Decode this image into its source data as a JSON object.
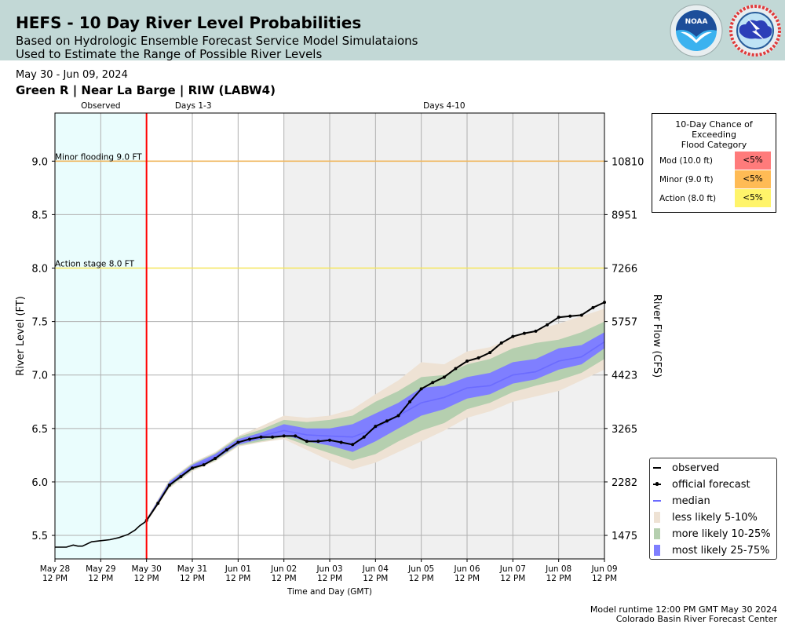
{
  "header": {
    "title": "HEFS - 10 Day River Level Probabilities",
    "subtitle1": "Based on Hydrologic Ensemble Forecast Service Model Simulataions",
    "subtitle2": "Used to Estimate the Range of Possible River Levels",
    "logos": [
      "noaa-logo",
      "nws-logo"
    ],
    "noaa_text": "NOAA"
  },
  "date_range": "May 30 - Jun 09, 2024",
  "location": "Green R | Near La Barge | RIW (LABW4)",
  "flood_box": {
    "title_lines": [
      "10-Day Chance of",
      "Exceeding",
      "Flood Category"
    ],
    "rows": [
      {
        "label": "Mod (10.0 ft)",
        "value": "<5%",
        "color": "#ff7b7b"
      },
      {
        "label": "Minor (9.0 ft)",
        "value": "<5%",
        "color": "#ffbb55"
      },
      {
        "label": "Action (8.0 ft)",
        "value": "<5%",
        "color": "#fff46a"
      }
    ]
  },
  "legend": [
    {
      "label": "observed",
      "type": "line",
      "color": "#000000"
    },
    {
      "label": "official forecast",
      "type": "marker-line",
      "color": "#000000"
    },
    {
      "label": "median",
      "type": "line",
      "color": "#6b6bff"
    },
    {
      "label": "less likely 5-10%",
      "type": "patch",
      "color": "#eee2d4"
    },
    {
      "label": "more likely 10-25%",
      "type": "patch",
      "color": "#b5cfaf"
    },
    {
      "label": "most likely 25-75%",
      "type": "patch",
      "color": "#7f7fff"
    }
  ],
  "footer": {
    "line1": "Model runtime 12:00 PM GMT May 30 2024",
    "line2": "Colorado Basin River Forecast Center"
  },
  "chart_data": {
    "type": "area",
    "xlabel": "Time and Day (GMT)",
    "ylabel": "River Level (FT)",
    "y2label": "River Flow (CFS)",
    "ylim": [
      5.28,
      9.45
    ],
    "xlim_days": [
      0,
      12
    ],
    "grid": true,
    "legend_position": "bottom-right",
    "x_ticks": [
      {
        "day": 0,
        "line1": "May 28",
        "line2": "12 PM"
      },
      {
        "day": 1,
        "line1": "May 29",
        "line2": "12 PM"
      },
      {
        "day": 2,
        "line1": "May 30",
        "line2": "12 PM"
      },
      {
        "day": 3,
        "line1": "May 31",
        "line2": "12 PM"
      },
      {
        "day": 4,
        "line1": "Jun 01",
        "line2": "12 PM"
      },
      {
        "day": 5,
        "line1": "Jun 02",
        "line2": "12 PM"
      },
      {
        "day": 6,
        "line1": "Jun 03",
        "line2": "12 PM"
      },
      {
        "day": 7,
        "line1": "Jun 04",
        "line2": "12 PM"
      },
      {
        "day": 8,
        "line1": "Jun 05",
        "line2": "12 PM"
      },
      {
        "day": 9,
        "line1": "Jun 06",
        "line2": "12 PM"
      },
      {
        "day": 10,
        "line1": "Jun 07",
        "line2": "12 PM"
      },
      {
        "day": 11,
        "line1": "Jun 08",
        "line2": "12 PM"
      },
      {
        "day": 12,
        "line1": "Jun 09",
        "line2": "12 PM"
      }
    ],
    "y_ticks": [
      5.5,
      6.0,
      6.5,
      7.0,
      7.5,
      8.0,
      8.5,
      9.0
    ],
    "y2_ticks": [
      {
        "stage": 5.5,
        "flow": "1475"
      },
      {
        "stage": 6.0,
        "flow": "2282"
      },
      {
        "stage": 6.5,
        "flow": "3265"
      },
      {
        "stage": 7.0,
        "flow": "4423"
      },
      {
        "stage": 7.5,
        "flow": "5757"
      },
      {
        "stage": 8.0,
        "flow": "7266"
      },
      {
        "stage": 8.5,
        "flow": "8951"
      },
      {
        "stage": 9.0,
        "flow": "10810"
      }
    ],
    "regions": [
      {
        "label": "Observed",
        "start_day": 0,
        "end_day": 2,
        "color": "#eafdfd"
      },
      {
        "label": "Days 1-3",
        "start_day": 2,
        "end_day": 5,
        "color": "#ffffff"
      },
      {
        "label": "Days 4-10",
        "start_day": 5,
        "end_day": 12,
        "color": "#f0f0f0"
      }
    ],
    "forecast_start_day": 2,
    "forecast_start_color": "#ff0000",
    "thresholds": [
      {
        "label": "Minor flooding 9.0 FT",
        "value": 9.0,
        "color": "#f0b860"
      },
      {
        "label": "Action stage 8.0 FT",
        "value": 8.0,
        "color": "#f5e65a"
      }
    ],
    "observed": {
      "x": [
        0,
        0.25,
        0.4,
        0.5,
        0.6,
        0.8,
        1.0,
        1.2,
        1.4,
        1.6,
        1.75,
        1.85,
        1.95,
        2.0
      ],
      "y": [
        5.39,
        5.39,
        5.41,
        5.4,
        5.4,
        5.44,
        5.45,
        5.46,
        5.48,
        5.51,
        5.55,
        5.59,
        5.62,
        5.64
      ]
    },
    "official_forecast": {
      "x": [
        2.0,
        2.25,
        2.5,
        2.75,
        3.0,
        3.25,
        3.5,
        3.75,
        4.0,
        4.25,
        4.5,
        4.75,
        5.0,
        5.25,
        5.5,
        5.75,
        6.0,
        6.25,
        6.5,
        6.75,
        7.0,
        7.25,
        7.5,
        7.75,
        8.0,
        8.25,
        8.5,
        8.75,
        9.0,
        9.25,
        9.5,
        9.75,
        10.0,
        10.25,
        10.5,
        10.75,
        11.0,
        11.25,
        11.5,
        11.75,
        12.0
      ],
      "y": [
        5.64,
        5.8,
        5.97,
        6.05,
        6.13,
        6.16,
        6.22,
        6.3,
        6.37,
        6.4,
        6.42,
        6.42,
        6.43,
        6.43,
        6.38,
        6.38,
        6.39,
        6.37,
        6.35,
        6.42,
        6.52,
        6.57,
        6.62,
        6.75,
        6.87,
        6.93,
        6.98,
        7.06,
        7.13,
        7.16,
        7.21,
        7.3,
        7.36,
        7.39,
        7.41,
        7.47,
        7.54,
        7.55,
        7.56,
        7.63,
        7.68
      ]
    },
    "median": {
      "x": [
        2.0,
        2.5,
        3.0,
        3.5,
        4.0,
        4.5,
        5.0,
        5.5,
        6.0,
        6.5,
        7.0,
        7.5,
        8.0,
        8.5,
        9.0,
        9.5,
        10.0,
        10.5,
        11.0,
        11.5,
        12.0
      ],
      "y": [
        5.64,
        5.98,
        6.14,
        6.23,
        6.37,
        6.43,
        6.48,
        6.44,
        6.43,
        6.42,
        6.5,
        6.62,
        6.74,
        6.79,
        6.88,
        6.9,
        7.0,
        7.03,
        7.13,
        7.17,
        7.31
      ]
    },
    "bands": [
      {
        "name": "less likely 5-10%",
        "color": "#eee2d4",
        "x": [
          2.0,
          2.5,
          3.0,
          3.5,
          4.0,
          4.5,
          5.0,
          5.5,
          6.0,
          6.5,
          7.0,
          7.5,
          8.0,
          8.5,
          9.0,
          9.5,
          10.0,
          10.5,
          11.0,
          11.5,
          12.0
        ],
        "lower": [
          5.62,
          5.94,
          6.1,
          6.19,
          6.33,
          6.37,
          6.4,
          6.3,
          6.2,
          6.12,
          6.18,
          6.28,
          6.38,
          6.48,
          6.6,
          6.66,
          6.75,
          6.8,
          6.85,
          6.95,
          7.05
        ],
        "upper": [
          5.66,
          6.02,
          6.18,
          6.28,
          6.43,
          6.52,
          6.62,
          6.6,
          6.62,
          6.68,
          6.82,
          6.95,
          7.12,
          7.1,
          7.22,
          7.26,
          7.35,
          7.42,
          7.48,
          7.55,
          7.62
        ]
      },
      {
        "name": "more likely 10-25%",
        "color": "#b5cfaf",
        "x": [
          2.0,
          2.5,
          3.0,
          3.5,
          4.0,
          4.5,
          5.0,
          5.5,
          6.0,
          6.5,
          7.0,
          7.5,
          8.0,
          8.5,
          9.0,
          9.5,
          10.0,
          10.5,
          11.0,
          11.5,
          12.0
        ],
        "lower": [
          5.63,
          5.95,
          6.11,
          6.2,
          6.34,
          6.38,
          6.42,
          6.34,
          6.27,
          6.2,
          6.26,
          6.38,
          6.48,
          6.55,
          6.68,
          6.74,
          6.84,
          6.9,
          6.95,
          7.02,
          7.15
        ],
        "upper": [
          5.65,
          6.01,
          6.17,
          6.27,
          6.42,
          6.49,
          6.58,
          6.56,
          6.58,
          6.62,
          6.75,
          6.85,
          6.98,
          7.0,
          7.1,
          7.15,
          7.25,
          7.3,
          7.33,
          7.4,
          7.5
        ]
      },
      {
        "name": "most likely 25-75%",
        "color": "#7f7fff",
        "x": [
          2.0,
          2.5,
          3.0,
          3.5,
          4.0,
          4.5,
          5.0,
          5.5,
          6.0,
          6.5,
          7.0,
          7.5,
          8.0,
          8.5,
          9.0,
          9.5,
          10.0,
          10.5,
          11.0,
          11.5,
          12.0
        ],
        "lower": [
          5.63,
          5.96,
          6.12,
          6.21,
          6.35,
          6.4,
          6.44,
          6.38,
          6.34,
          6.28,
          6.38,
          6.5,
          6.62,
          6.68,
          6.78,
          6.82,
          6.92,
          6.96,
          7.05,
          7.1,
          7.25
        ],
        "upper": [
          5.65,
          6.0,
          6.16,
          6.26,
          6.4,
          6.46,
          6.54,
          6.5,
          6.5,
          6.54,
          6.64,
          6.74,
          6.88,
          6.9,
          6.98,
          7.02,
          7.12,
          7.15,
          7.25,
          7.28,
          7.4
        ]
      }
    ]
  }
}
